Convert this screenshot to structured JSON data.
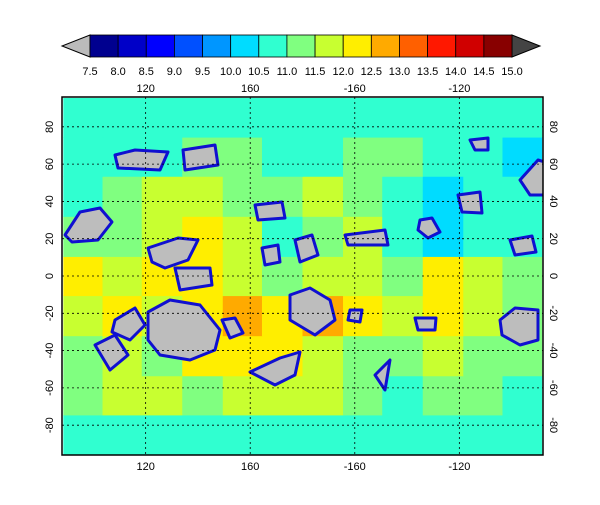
{
  "chart_data": {
    "type": "contour",
    "colorbar": {
      "ticks": [
        {
          "value": 7.5,
          "label": "7.5"
        },
        {
          "value": 8,
          "label": "8.0"
        },
        {
          "value": 8.5,
          "label": "8.5"
        },
        {
          "value": 9,
          "label": "9.0"
        },
        {
          "value": 9.5,
          "label": "9.5"
        },
        {
          "value": 10,
          "label": "10.0"
        },
        {
          "value": 10.5,
          "label": "10.5"
        },
        {
          "value": 11,
          "label": "11.0"
        },
        {
          "value": 11.5,
          "label": "11.5"
        },
        {
          "value": 12,
          "label": "12.0"
        },
        {
          "value": 12.5,
          "label": "12.5"
        },
        {
          "value": 13,
          "label": "13.0"
        },
        {
          "value": 13.5,
          "label": "13.5"
        },
        {
          "value": 14,
          "label": "14.0"
        },
        {
          "value": 14.5,
          "label": "14.5"
        },
        {
          "value": 15,
          "label": "15.0"
        }
      ],
      "colors": [
        "#00008f",
        "#0000c8",
        "#0000ff",
        "#0050ff",
        "#0096ff",
        "#00dcff",
        "#30ffd0",
        "#80ff80",
        "#c8ff30",
        "#ffee00",
        "#ffaa00",
        "#ff6000",
        "#ff1800",
        "#d00000",
        "#880000"
      ],
      "under_color": "#bbbbbb",
      "over_color": "#444444"
    },
    "xlim": [
      88,
      272
    ],
    "ylim": [
      -96,
      96
    ],
    "xticks": [
      120,
      160,
      {
        "value": 200,
        "label": "-160"
      },
      {
        "value": 240,
        "label": "-120"
      }
    ],
    "yticks": [
      -80,
      -60,
      -40,
      -20,
      0,
      20,
      40,
      60,
      80
    ],
    "grid": true,
    "x": [
      96,
      111,
      126,
      142,
      157,
      172,
      188,
      203,
      218,
      234,
      249,
      264
    ],
    "y": [
      -85,
      -64,
      -43,
      -21,
      0,
      21,
      43,
      64,
      85
    ],
    "z": [
      [
        10.5,
        10.5,
        10.5,
        10.5,
        10.5,
        10.5,
        10.5,
        10.5,
        10.5,
        10.5,
        10.5,
        10.5
      ],
      [
        11.0,
        11.5,
        11.5,
        11.0,
        11.5,
        11.5,
        11.5,
        11.0,
        10.5,
        11.0,
        11.0,
        10.5
      ],
      [
        11.0,
        11.5,
        11.0,
        12.0,
        12.0,
        12.0,
        11.5,
        11.0,
        11.0,
        11.5,
        11.0,
        11.0
      ],
      [
        11.5,
        12.0,
        11.5,
        12.0,
        12.5,
        12.0,
        12.5,
        12.0,
        11.5,
        12.0,
        11.5,
        11.0
      ],
      [
        12.0,
        11.5,
        12.0,
        12.0,
        11.5,
        11.0,
        11.5,
        11.5,
        11.0,
        12.0,
        11.5,
        11.0
      ],
      [
        11.0,
        11.0,
        11.5,
        12.0,
        11.5,
        10.5,
        11.0,
        11.5,
        10.5,
        10.0,
        10.5,
        10.5
      ],
      [
        10.5,
        11.0,
        11.5,
        11.5,
        11.0,
        11.0,
        11.5,
        11.0,
        10.5,
        10.0,
        10.5,
        10.5
      ],
      [
        10.5,
        10.5,
        10.5,
        11.0,
        11.0,
        10.5,
        10.5,
        11.0,
        11.0,
        10.5,
        10.5,
        10.0
      ],
      [
        10.5,
        10.5,
        10.5,
        10.5,
        10.5,
        10.5,
        10.5,
        10.5,
        10.5,
        10.5,
        10.5,
        10.5
      ]
    ]
  }
}
